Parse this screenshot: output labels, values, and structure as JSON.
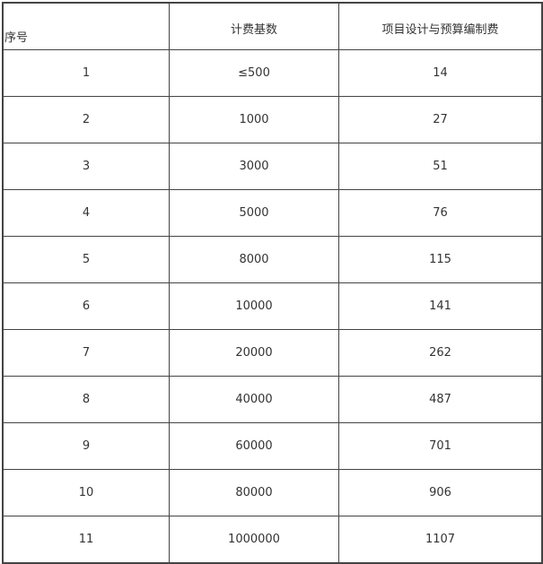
{
  "headers": [
    "序号",
    "计费基数",
    "项目设计与预算编制费"
  ],
  "rows": [
    [
      "1",
      "≤500",
      "14"
    ],
    [
      "2",
      "1000",
      "27"
    ],
    [
      "3",
      "3000",
      "51"
    ],
    [
      "4",
      "5000",
      "76"
    ],
    [
      "5",
      "8000",
      "115"
    ],
    [
      "6",
      "10000",
      "141"
    ],
    [
      "7",
      "20000",
      "262"
    ],
    [
      "8",
      "40000",
      "487"
    ],
    [
      "9",
      "60000",
      "701"
    ],
    [
      "10",
      "80000",
      "906"
    ],
    [
      "11",
      "1000000",
      "1107"
    ]
  ]
}
